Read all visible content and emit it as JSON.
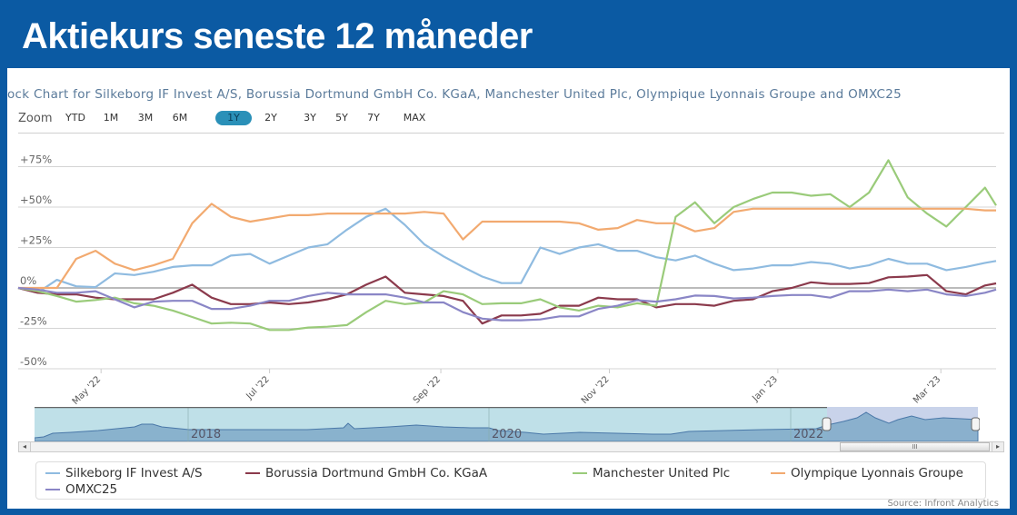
{
  "header": {
    "title": "Aktiekurs seneste 12 måneder"
  },
  "chart_title": "ock Chart for Silkeborg IF Invest A/S, Borussia Dortmund GmbH Co. KGaA, Manchester United Plc, Olympique Lyonnais Groupe and OMXC25",
  "zoom": {
    "label": "Zoom",
    "buttons": [
      "YTD",
      "1M",
      "3M",
      "6M",
      "1Y",
      "2Y",
      "3Y",
      "5Y",
      "7Y",
      "MAX"
    ],
    "active": "1Y"
  },
  "navigator": {
    "year_labels": [
      "2018",
      "2020",
      "2022"
    ],
    "scroll_thumb": "III",
    "left_arrow": "◂",
    "right_arrow": "▸"
  },
  "source": "Source: Infront Analytics",
  "chart_data": {
    "type": "line",
    "ylim": [
      -50,
      75
    ],
    "yticks": [
      -50,
      -25,
      0,
      25,
      50,
      75
    ],
    "ytick_labels": [
      "-50%",
      "-25%",
      "0%",
      "+25%",
      "+50%",
      "+75%"
    ],
    "xtick_dates": [
      "2022-05-01",
      "2022-07-01",
      "2022-09-01",
      "2022-11-01",
      "2023-01-01",
      "2023-03-01"
    ],
    "xtick_labels": [
      "May '22",
      "Jul '22",
      "Sep '22",
      "Nov '22",
      "Jan '23",
      "Mar '23"
    ],
    "grid": true,
    "legend": "bottom",
    "x": [
      "2022-04-01",
      "2022-04-08",
      "2022-04-15",
      "2022-04-22",
      "2022-04-29",
      "2022-05-06",
      "2022-05-13",
      "2022-05-20",
      "2022-05-27",
      "2022-06-03",
      "2022-06-10",
      "2022-06-17",
      "2022-06-24",
      "2022-07-01",
      "2022-07-08",
      "2022-07-15",
      "2022-07-22",
      "2022-07-29",
      "2022-08-05",
      "2022-08-12",
      "2022-08-19",
      "2022-08-26",
      "2022-09-02",
      "2022-09-09",
      "2022-09-16",
      "2022-09-23",
      "2022-09-30",
      "2022-10-07",
      "2022-10-14",
      "2022-10-21",
      "2022-10-28",
      "2022-11-04",
      "2022-11-11",
      "2022-11-18",
      "2022-11-25",
      "2022-12-02",
      "2022-12-09",
      "2022-12-16",
      "2022-12-23",
      "2022-12-30",
      "2023-01-06",
      "2023-01-13",
      "2023-01-20",
      "2023-01-27",
      "2023-02-03",
      "2023-02-10",
      "2023-02-17",
      "2023-02-24",
      "2023-03-03",
      "2023-03-10",
      "2023-03-17",
      "2023-03-21"
    ],
    "series": [
      {
        "name": "Silkeborg IF Invest A/S",
        "color": "#8fbbe0",
        "values": [
          0,
          -3,
          5,
          1,
          0.5,
          9,
          8,
          10,
          13,
          14,
          14,
          20,
          21,
          15,
          20,
          25,
          27,
          36,
          44,
          49,
          39,
          27,
          19.5,
          13,
          7,
          3,
          3,
          25,
          21,
          25,
          27,
          23,
          23,
          19,
          17,
          20,
          15,
          11,
          12,
          14,
          14,
          16,
          15,
          12,
          14,
          18,
          15,
          15,
          11,
          13,
          15.5,
          16.7
        ]
      },
      {
        "name": "Borussia Dortmund GmbH Co. KGaA",
        "color": "#8b3a4c",
        "values": [
          0,
          -3,
          -4,
          -4,
          -6,
          -7,
          -7,
          -7,
          -3,
          2,
          -6,
          -10,
          -10,
          -9,
          -10,
          -9,
          -7,
          -4,
          2,
          7,
          -3,
          -4,
          -5,
          -8,
          -22,
          -17,
          -17,
          -16,
          -11,
          -11,
          -6,
          -7,
          -7,
          -12,
          -10,
          -10,
          -11,
          -8,
          -7,
          -2,
          0,
          3.5,
          2.5,
          2.5,
          3,
          6.6,
          7,
          8,
          -2,
          -4,
          1.5,
          2.8
        ]
      },
      {
        "name": "Manchester United Plc",
        "color": "#9acb7a",
        "values": [
          0,
          -2,
          -5,
          -8.5,
          -7.5,
          -6,
          -9.5,
          -11,
          -14,
          -18,
          -22,
          -21.5,
          -22,
          -26,
          -26,
          -24.5,
          -24,
          -23,
          -15,
          -8,
          -10,
          -9,
          -2,
          -4,
          -10,
          -9.5,
          -9.5,
          -7,
          -12,
          -14,
          -11,
          -12,
          -9.5,
          -11,
          44,
          53,
          40,
          50,
          55,
          59,
          59,
          57,
          58,
          50,
          59,
          79,
          56,
          46,
          38,
          50,
          62,
          51
        ]
      },
      {
        "name": "Olympique Lyonnais Groupe",
        "color": "#f2aa70",
        "values": [
          0,
          0,
          0,
          18,
          23,
          15,
          11,
          14,
          18,
          40,
          52,
          44,
          41,
          43,
          45,
          45,
          46,
          46,
          46,
          46,
          46,
          47,
          46,
          30,
          41,
          41,
          41,
          41,
          41,
          40,
          36,
          37,
          42,
          40,
          40,
          35,
          37,
          47,
          49,
          49,
          49,
          49,
          49,
          49,
          49,
          49,
          49,
          49,
          49,
          49,
          48,
          48
        ]
      },
      {
        "name": "OMXC25",
        "color": "#8a86c6",
        "values": [
          0,
          -1,
          -3,
          -3,
          -2,
          -7,
          -12,
          -8.5,
          -8,
          -8,
          -13,
          -13,
          -11,
          -8,
          -8,
          -5,
          -3,
          -4,
          -4,
          -4,
          -6,
          -9,
          -9,
          -15,
          -19,
          -20,
          -20,
          -19.5,
          -17.6,
          -17.6,
          -13,
          -11,
          -7.6,
          -8.5,
          -7,
          -4.7,
          -5,
          -6.5,
          -6,
          -5,
          -4.4,
          -4.4,
          -6,
          -2,
          -2,
          -1,
          -2,
          -1,
          -4,
          -5,
          -3,
          -1
        ]
      }
    ]
  }
}
